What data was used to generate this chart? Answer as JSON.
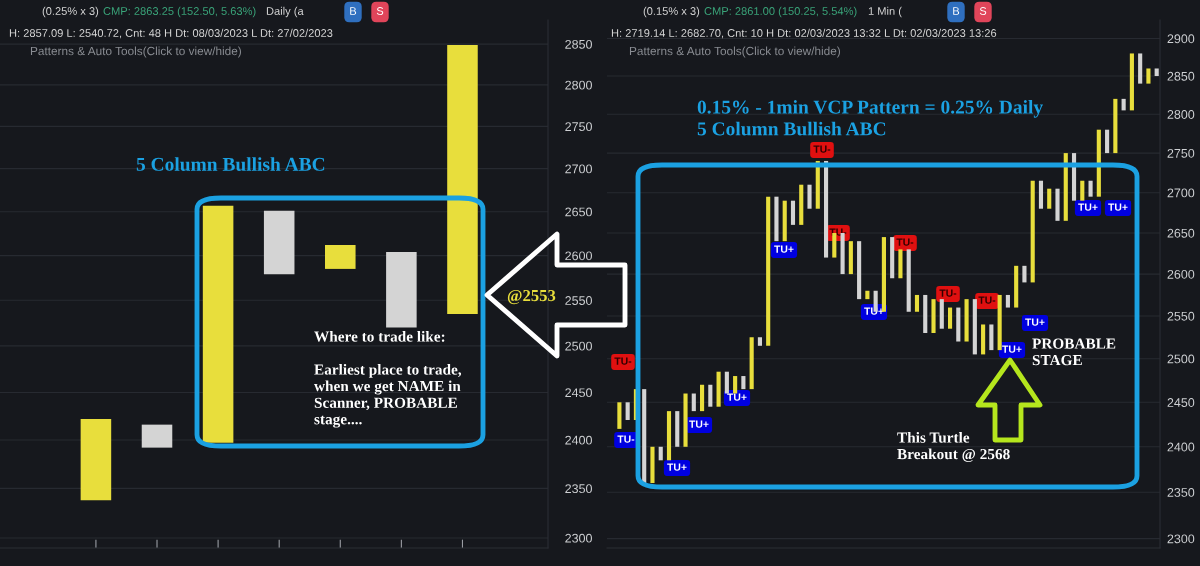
{
  "chart_data": [
    {
      "type": "bar",
      "log": true,
      "grid": "y",
      "tick_labels": "y",
      "categories": [
        null,
        null,
        null,
        null,
        null,
        null,
        null
      ],
      "values": [
        84,
        24,
        260,
        72,
        27,
        84,
        314
      ],
      "base": [
        2338,
        2392,
        2397,
        2579,
        2585,
        2520,
        2535
      ],
      "colors": [
        "#e8de3c",
        "#d4d4d4",
        "#e8de3c",
        "#d4d4d4",
        "#e8de3c",
        "#d4d4d4",
        "#e8de3c"
      ],
      "ylim": [
        2290,
        2880
      ],
      "yticks": [
        2300,
        2350,
        2400,
        2450,
        2500,
        2550,
        2600,
        2650,
        2700,
        2750,
        2800,
        2850
      ],
      "annotations": [
        "(0.25% x 3)",
        "CMP: 2863.25 (152.50, 5.63%)",
        "Daily (a",
        "B",
        "S",
        "H: 2857.09 L: 2540.72, Cnt: 48 H Dt: 08/03/2023 L Dt: 27/02/2023",
        "Patterns & Auto Tools(Click to view/hide)",
        "5 Column Bullish ABC",
        "@2553",
        "Where to trade like:\n\nEarliest place to trade,\nwhen we get NAME in\nScanner, PROBABLE\nstage...."
      ]
    },
    {
      "type": "bar",
      "log": true,
      "grid": "y",
      "tick_labels": "y",
      "categories": [
        null,
        null,
        null,
        null,
        null,
        null,
        null,
        null,
        null,
        null,
        null,
        null,
        null,
        null,
        null,
        null,
        null,
        null,
        null,
        null,
        null,
        null,
        null,
        null,
        null,
        null,
        null,
        null,
        null,
        null,
        null,
        null,
        null,
        null,
        null,
        null,
        null,
        null,
        null,
        null,
        null,
        null,
        null,
        null,
        null,
        null,
        null,
        null,
        null,
        null,
        null,
        null,
        null,
        null,
        null,
        null,
        null,
        null,
        null,
        null,
        null,
        null,
        null,
        null,
        null,
        null
      ],
      "values": [
        30,
        20,
        35,
        105,
        40,
        15,
        55,
        40,
        60,
        20,
        30,
        25,
        40,
        25,
        20,
        15,
        60,
        10,
        180,
        55,
        50,
        30,
        50,
        30,
        60,
        120,
        30,
        50,
        40,
        70,
        10,
        25,
        90,
        50,
        35,
        75,
        20,
        45,
        40,
        35,
        25,
        40,
        50,
        65,
        35,
        30,
        65,
        15,
        50,
        20,
        125,
        35,
        25,
        40,
        85,
        60,
        25,
        20,
        85,
        30,
        70,
        15,
        75,
        40,
        20,
        10
      ],
      "base": [
        2420,
        2430,
        2430,
        2360,
        2360,
        2385,
        2385,
        2400,
        2400,
        2440,
        2440,
        2445,
        2445,
        2460,
        2460,
        2465,
        2465,
        2515,
        2515,
        2640,
        2640,
        2660,
        2660,
        2680,
        2680,
        2620,
        2620,
        2600,
        2600,
        2570,
        2570,
        2555,
        2555,
        2595,
        2595,
        2555,
        2555,
        2530,
        2530,
        2535,
        2535,
        2520,
        2520,
        2505,
        2505,
        2510,
        2510,
        2560,
        2560,
        2590,
        2590,
        2680,
        2680,
        2665,
        2665,
        2690,
        2690,
        2695,
        2695,
        2750,
        2750,
        2805,
        2805,
        2840,
        2840,
        2850
      ],
      "colors": [
        "#e8de3c",
        "#d4d4d4",
        "#e8de3c",
        "#d4d4d4",
        "#e8de3c",
        "#d4d4d4",
        "#e8de3c",
        "#d4d4d4",
        "#e8de3c",
        "#d4d4d4",
        "#e8de3c",
        "#d4d4d4",
        "#e8de3c",
        "#d4d4d4",
        "#e8de3c",
        "#d4d4d4",
        "#e8de3c",
        "#d4d4d4",
        "#e8de3c",
        "#d4d4d4",
        "#e8de3c",
        "#d4d4d4",
        "#e8de3c",
        "#d4d4d4",
        "#e8de3c",
        "#d4d4d4",
        "#e8de3c",
        "#d4d4d4",
        "#e8de3c",
        "#d4d4d4",
        "#e8de3c",
        "#d4d4d4",
        "#e8de3c",
        "#d4d4d4",
        "#e8de3c",
        "#d4d4d4",
        "#e8de3c",
        "#d4d4d4",
        "#e8de3c",
        "#d4d4d4",
        "#e8de3c",
        "#d4d4d4",
        "#e8de3c",
        "#d4d4d4",
        "#e8de3c",
        "#d4d4d4",
        "#e8de3c",
        "#d4d4d4",
        "#e8de3c",
        "#d4d4d4",
        "#e8de3c",
        "#d4d4d4",
        "#e8de3c",
        "#d4d4d4",
        "#e8de3c",
        "#d4d4d4",
        "#e8de3c",
        "#d4d4d4",
        "#e8de3c",
        "#d4d4d4",
        "#e8de3c",
        "#d4d4d4",
        "#e8de3c",
        "#d4d4d4",
        "#e8de3c",
        "#d4d4d4"
      ],
      "ylim": [
        2290,
        2925
      ],
      "yticks": [
        2300,
        2350,
        2400,
        2450,
        2500,
        2550,
        2600,
        2650,
        2700,
        2750,
        2800,
        2850,
        2900
      ],
      "annotations": [
        "(0.15% x 3)",
        "CMP: 2861.00 (150.25, 5.54%)",
        "1 Min (",
        "B",
        "S",
        "H: 2719.14 L: 2682.70, Cnt: 10 H Dt: 02/03/2023 13:32 L Dt: 02/03/2023 13:26",
        "Patterns & Auto Tools(Click to view/hide)",
        "0.15% - 1min VCP Pattern = 0.25% Daily\n5 Column Bullish ABC",
        "PROBABLE\nSTAGE",
        "This Turtle\nBreakout @ 2568",
        "TU-",
        "TU-",
        "TU+",
        "TU+",
        "TU+",
        "TU+",
        "TU-",
        "TU-",
        "TU+",
        "TU-",
        "TU-",
        "TU-",
        "TU+",
        "TU+",
        "TU+",
        "TU+"
      ]
    }
  ]
}
